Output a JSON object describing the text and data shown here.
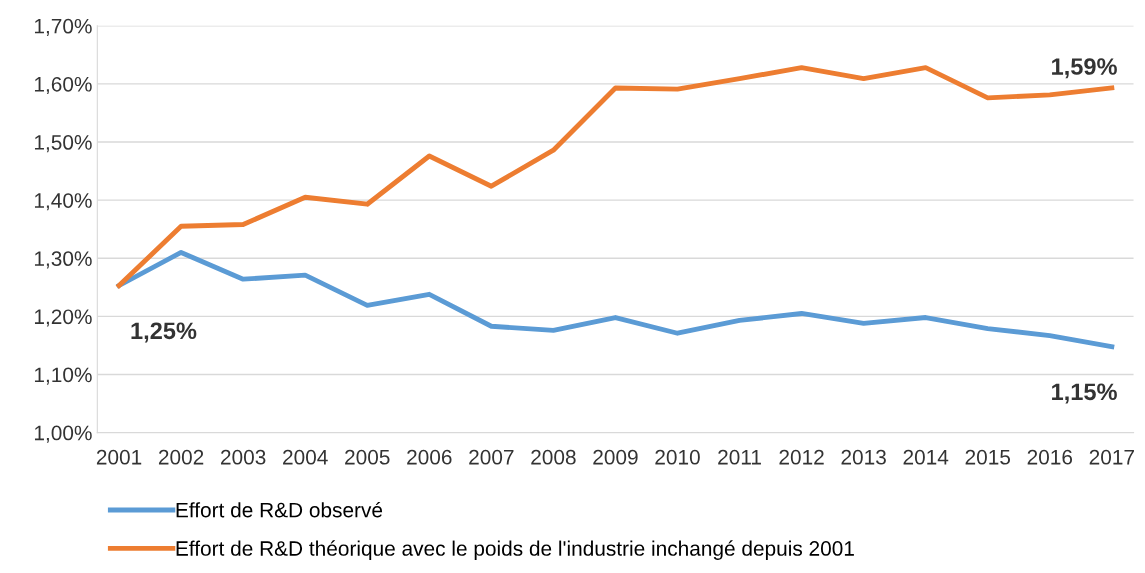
{
  "chart_data": {
    "type": "line",
    "categories": [
      "2001",
      "2002",
      "2003",
      "2004",
      "2005",
      "2006",
      "2007",
      "2008",
      "2009",
      "2010",
      "2011",
      "2012",
      "2013",
      "2014",
      "2015",
      "2016",
      "2017"
    ],
    "series": [
      {
        "name": "Effort de R&D observé",
        "color": "#5b9bd5",
        "values": [
          1.253,
          1.31,
          1.264,
          1.271,
          1.219,
          1.238,
          1.183,
          1.176,
          1.198,
          1.171,
          1.193,
          1.205,
          1.188,
          1.198,
          1.179,
          1.167,
          1.148
        ]
      },
      {
        "name": "Effort de R&D théorique avec le poids de l'industrie inchangé depuis 2001",
        "color": "#ed7d31",
        "values": [
          1.253,
          1.355,
          1.358,
          1.405,
          1.393,
          1.476,
          1.424,
          1.486,
          1.593,
          1.591,
          1.609,
          1.628,
          1.609,
          1.628,
          1.576,
          1.581,
          1.593
        ]
      }
    ],
    "ylim": [
      1.0,
      1.7
    ],
    "yticks": [
      {
        "value": 1.0,
        "label": "1,00%"
      },
      {
        "value": 1.1,
        "label": "1,10%"
      },
      {
        "value": 1.2,
        "label": "1,20%"
      },
      {
        "value": 1.3,
        "label": "1,30%"
      },
      {
        "value": 1.4,
        "label": "1,40%"
      },
      {
        "value": 1.5,
        "label": "1,50%"
      },
      {
        "value": 1.6,
        "label": "1,60%"
      },
      {
        "value": 1.7,
        "label": "1,70%"
      }
    ],
    "annotations": [
      {
        "text": "1,25%",
        "x": "2001",
        "y": 1.253
      },
      {
        "text": "1,15%",
        "x": "2017",
        "y": 1.148
      },
      {
        "text": "1,59%",
        "x": "2017",
        "y": 1.593
      }
    ],
    "grid": "y",
    "legend": "bottom",
    "marker": "none",
    "line_style": "solid"
  }
}
